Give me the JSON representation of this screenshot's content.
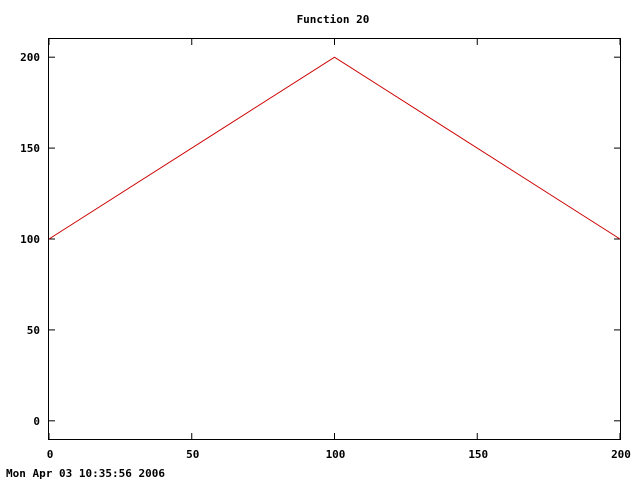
{
  "chart_data": {
    "type": "line",
    "title": "Function 20",
    "xlabel": "",
    "ylabel": "",
    "xlim": [
      0,
      200
    ],
    "ylim": [
      -10,
      210
    ],
    "x_ticks": [
      0,
      50,
      100,
      150,
      200
    ],
    "y_ticks": [
      0,
      50,
      100,
      150,
      200
    ],
    "grid": false,
    "series": [
      {
        "x": [
          0,
          100,
          200
        ],
        "y": [
          100,
          200,
          100
        ],
        "color": "#cc0000"
      }
    ]
  },
  "timestamp": "Mon Apr 03 10:35:56 2006"
}
